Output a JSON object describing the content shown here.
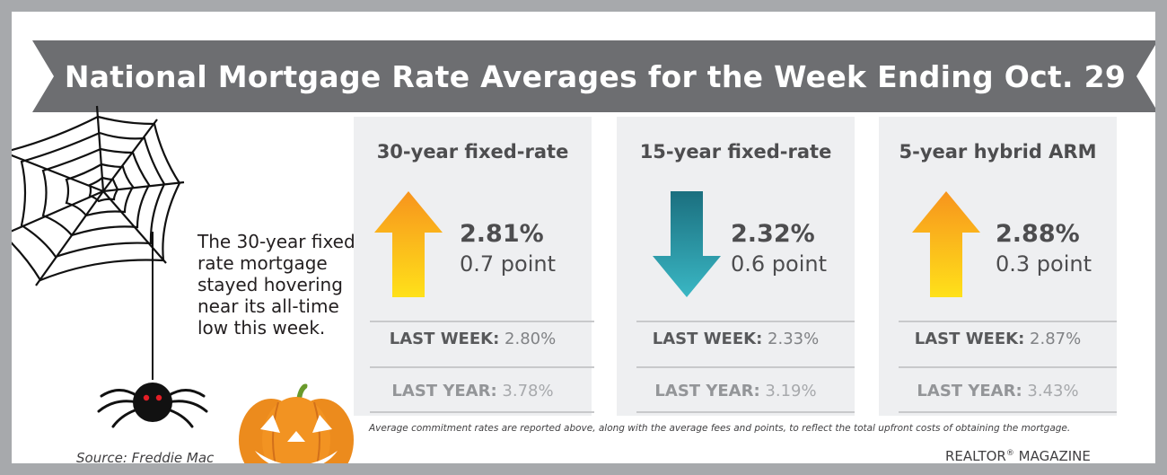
{
  "banner": {
    "title": "National Mortgage Rate Averages for the Week Ending Oct. 29",
    "color": "#6d6e71"
  },
  "cards": [
    {
      "title": "30-year fixed-rate",
      "direction": "up",
      "rate": "2.81%",
      "change": "0.7 point",
      "last_week_label": "LAST WEEK:",
      "last_week_value": "2.80%",
      "last_year_label": "LAST YEAR:",
      "last_year_value": "3.78%"
    },
    {
      "title": "15-year fixed-rate",
      "direction": "down",
      "rate": "2.32%",
      "change": "0.6 point",
      "last_week_label": "LAST WEEK:",
      "last_week_value": "2.33%",
      "last_year_label": "LAST YEAR:",
      "last_year_value": "3.19%"
    },
    {
      "title": "5-year hybrid ARM",
      "direction": "up",
      "rate": "2.88%",
      "change": "0.3 point",
      "last_week_label": "LAST WEEK:",
      "last_week_value": "2.87%",
      "last_year_label": "LAST YEAR:",
      "last_year_value": "3.43%"
    }
  ],
  "colors": {
    "up_arrow_top": "#f7941d",
    "up_arrow_bottom": "#ffe11a",
    "down_arrow_top": "#1b6f7f",
    "down_arrow_bottom": "#3ab7c4",
    "card_bg": "#eeeff1",
    "frame": "#a7a9ac"
  },
  "side_note": "The 30-year fixed-rate mortgage stayed hovering near its all-time low this week.",
  "footnote": "Average commitment rates are reported above, along with the average fees and points, to reflect the total upfront costs of obtaining the mortgage.",
  "source": "Source: Freddie Mac",
  "brand": {
    "name": "REALTOR",
    "mark": "®",
    "suffix": " MAGAZINE"
  },
  "decorations": [
    "spider-web-icon",
    "spider-icon",
    "jack-o-lantern-icon"
  ]
}
